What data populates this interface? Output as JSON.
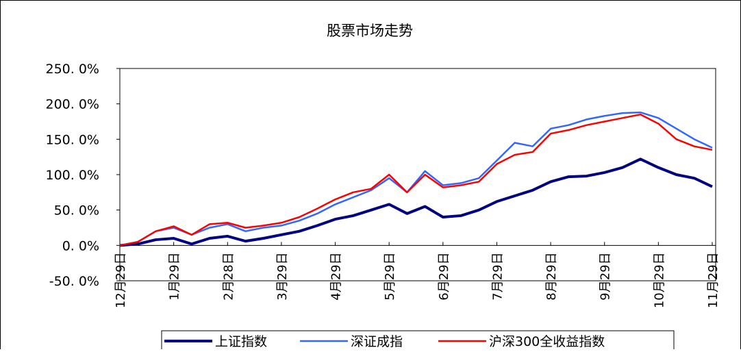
{
  "chart_data": {
    "type": "line",
    "title": "股票市场走势",
    "categories": [
      "12月29日",
      null,
      null,
      "1月29日",
      null,
      null,
      "2月28日",
      null,
      null,
      "3月29日",
      null,
      null,
      "4月29日",
      null,
      null,
      "5月29日",
      null,
      null,
      "6月29日",
      null,
      null,
      "7月29日",
      null,
      null,
      "8月29日",
      null,
      null,
      "9月29日",
      null,
      null,
      "10月29日",
      null,
      null,
      "11月29日"
    ],
    "series": [
      {
        "name": "上证指数",
        "color": "#000080",
        "values": [
          0,
          2,
          8,
          10,
          2,
          10,
          13,
          6,
          10,
          15,
          20,
          28,
          37,
          42,
          50,
          58,
          45,
          55,
          40,
          42,
          50,
          62,
          70,
          78,
          90,
          97,
          98,
          103,
          110,
          122,
          110,
          100,
          95,
          83
        ]
      },
      {
        "name": "深证成指",
        "color": "#3366ff",
        "values": [
          0,
          5,
          20,
          25,
          15,
          25,
          30,
          20,
          25,
          28,
          35,
          45,
          58,
          68,
          78,
          95,
          75,
          105,
          85,
          88,
          95,
          120,
          145,
          140,
          165,
          170,
          178,
          183,
          187,
          188,
          180,
          165,
          150,
          138
        ]
      },
      {
        "name": "沪深300全收益指数",
        "color": "#ff0000",
        "values": [
          0,
          5,
          20,
          27,
          15,
          30,
          32,
          25,
          28,
          32,
          40,
          52,
          65,
          75,
          80,
          100,
          75,
          100,
          82,
          85,
          90,
          115,
          128,
          132,
          158,
          163,
          170,
          175,
          180,
          185,
          172,
          150,
          140,
          135
        ]
      }
    ],
    "ylim": [
      -50,
      250
    ],
    "yticks": [
      {
        "value": -50,
        "label": "-50. 0%"
      },
      {
        "value": 0,
        "label": "0. 0%"
      },
      {
        "value": 50,
        "label": "50. 0%"
      },
      {
        "value": 100,
        "label": "100. 0%"
      },
      {
        "value": 150,
        "label": "150. 0%"
      },
      {
        "value": 200,
        "label": "200. 0%"
      },
      {
        "value": 250,
        "label": "250. 0%"
      }
    ]
  }
}
